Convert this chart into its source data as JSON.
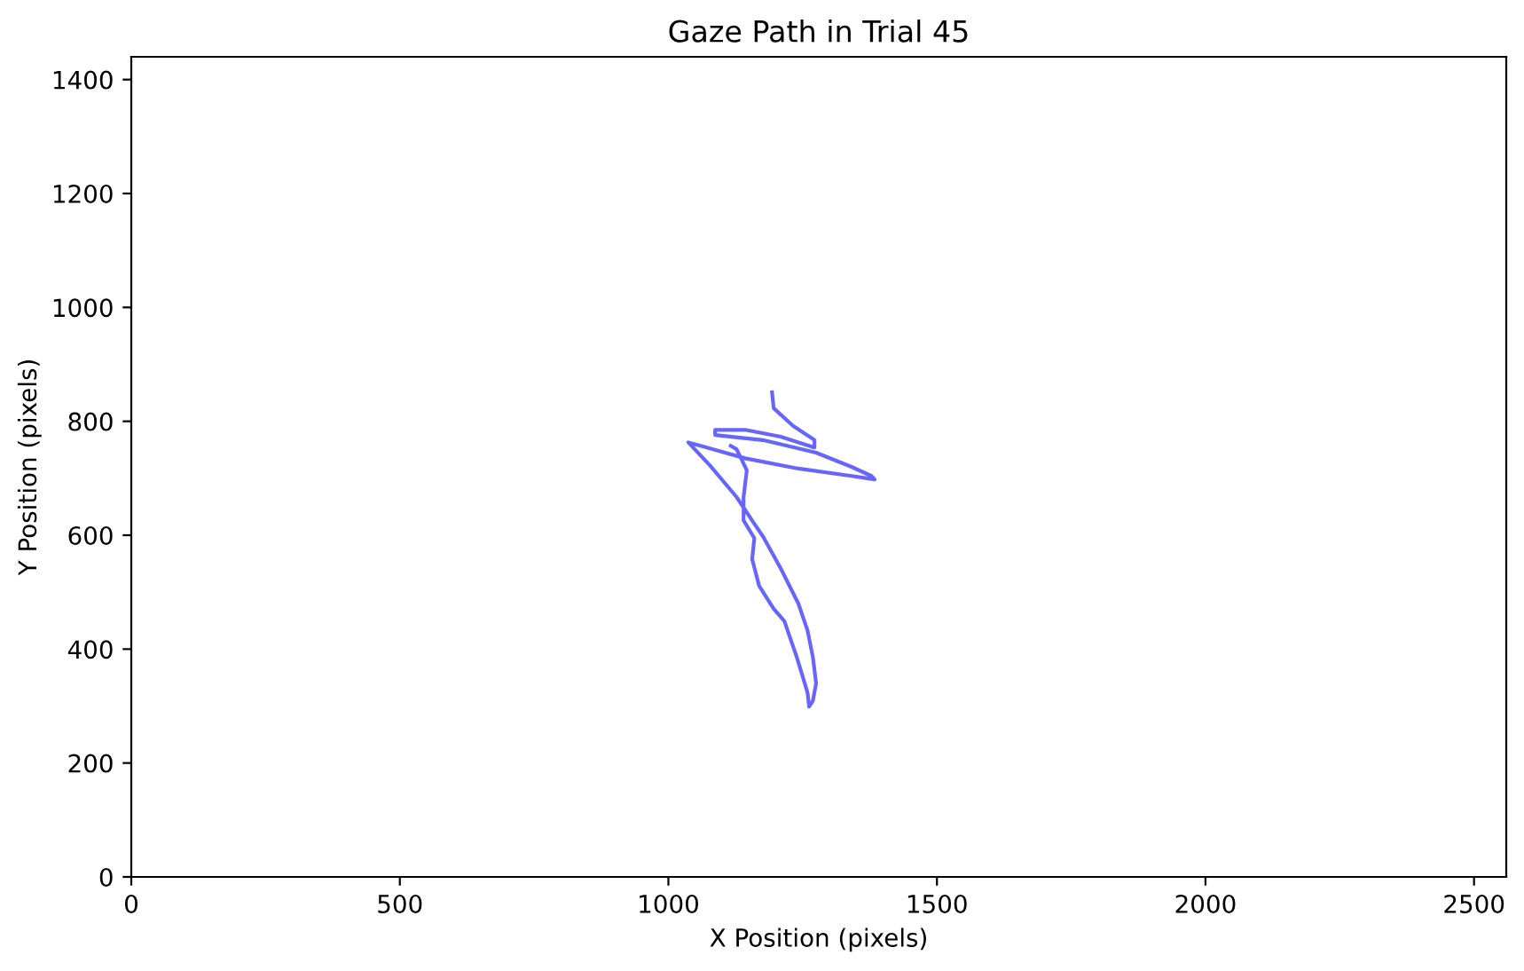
{
  "chart_data": {
    "type": "line",
    "title": "Gaze Path in Trial 45",
    "xlabel": "X Position (pixels)",
    "ylabel": "Y Position (pixels)",
    "xlim": [
      0,
      2560
    ],
    "ylim": [
      0,
      1440
    ],
    "xticks": [
      0,
      500,
      1000,
      1500,
      2000,
      2500
    ],
    "yticks": [
      0,
      200,
      400,
      600,
      800,
      1000,
      1200,
      1400
    ],
    "grid": false,
    "marker": "none",
    "line_style": "solid",
    "series": [
      {
        "color": "#6666ff",
        "x": [
          1193,
          1196,
          1232,
          1272,
          1272,
          1209,
          1143,
          1087,
          1087,
          1176,
          1275,
          1341,
          1378,
          1384,
          1341,
          1242,
          1143,
          1060,
          1037,
          1077,
          1127,
          1160,
          1176,
          1209,
          1242,
          1259,
          1269,
          1275,
          1269,
          1262,
          1259,
          1239,
          1216,
          1196,
          1169,
          1156,
          1160,
          1140,
          1140,
          1146,
          1127,
          1116
        ],
        "values": [
          851,
          823,
          792,
          767,
          754,
          773,
          785,
          785,
          776,
          767,
          745,
          720,
          704,
          698,
          704,
          717,
          735,
          757,
          763,
          723,
          667,
          620,
          598,
          542,
          480,
          433,
          386,
          340,
          309,
          299,
          324,
          386,
          449,
          471,
          511,
          558,
          595,
          626,
          667,
          714,
          751,
          757
        ]
      }
    ]
  }
}
